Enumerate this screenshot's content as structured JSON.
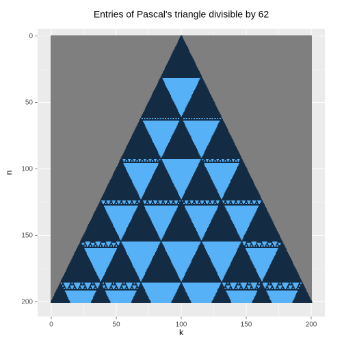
{
  "chart_data": {
    "type": "tile",
    "title": "Entries of Pascal's triangle divisible by 62",
    "x_label": "k",
    "y_label": "n",
    "divisor": 62,
    "n_range": [
      0,
      200
    ],
    "colors": {
      "divisible": "#56B1F7",
      "not_divisible": "#132B43",
      "empty": "#7F7F7F"
    },
    "xlim": [
      -10.5,
      210.5
    ],
    "ylim": [
      -5.5,
      211
    ],
    "y_reversed": true,
    "xticks": [
      0,
      50,
      100,
      150,
      200
    ],
    "yticks": [
      0,
      50,
      100,
      150,
      200
    ],
    "x_minor_ticks": [
      25,
      75,
      125,
      175
    ],
    "y_minor_ticks": [
      25,
      75,
      125,
      175
    ],
    "grid": true
  }
}
